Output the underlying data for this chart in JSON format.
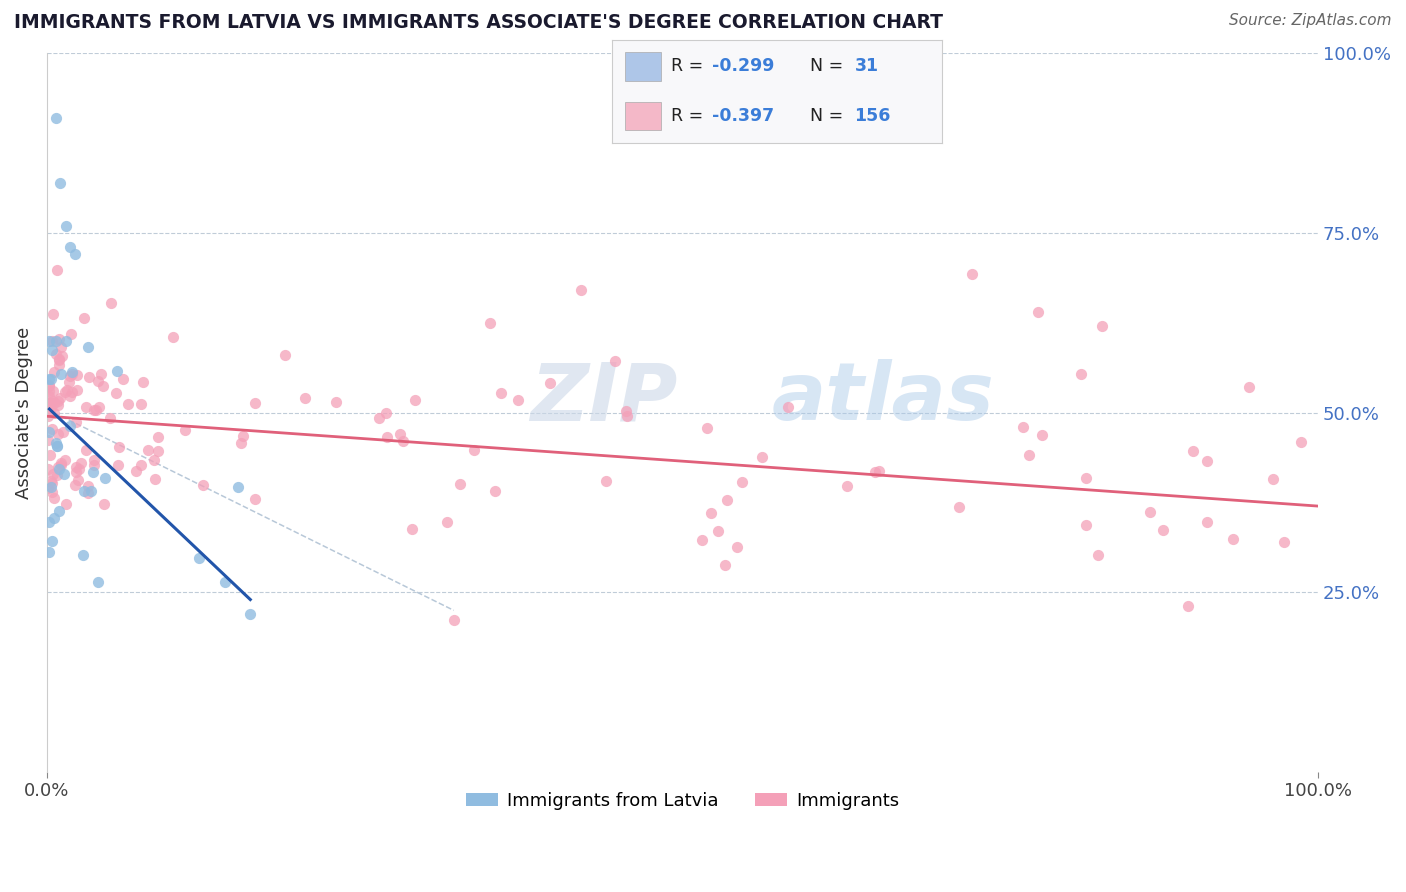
{
  "title": "IMMIGRANTS FROM LATVIA VS IMMIGRANTS ASSOCIATE'S DEGREE CORRELATION CHART",
  "source_text": "Source: ZipAtlas.com",
  "ylabel": "Associate's Degree",
  "legend_color1": "#aec6e8",
  "legend_color2": "#f4b8c8",
  "scatter_blue_color": "#90bce0",
  "scatter_pink_color": "#f4a0b8",
  "trend_blue_color": "#2255aa",
  "trend_pink_color": "#e0607a",
  "dashed_line_color": "#b8c8d8",
  "watermark_color": "#ccd8e8",
  "background_color": "#ffffff",
  "grid_color": "#c0ccd8",
  "right_tick_color": "#4472c4",
  "title_color": "#1a1a2e",
  "source_color": "#666666",
  "xlim": [
    0.0,
    1.0
  ],
  "ylim": [
    0.0,
    1.0
  ],
  "blue_trend": [
    0.002,
    0.505,
    0.16,
    0.24
  ],
  "pink_trend": [
    0.0,
    0.495,
    1.0,
    0.37
  ],
  "dashed_trend": [
    0.0,
    0.505,
    0.32,
    0.225
  ]
}
